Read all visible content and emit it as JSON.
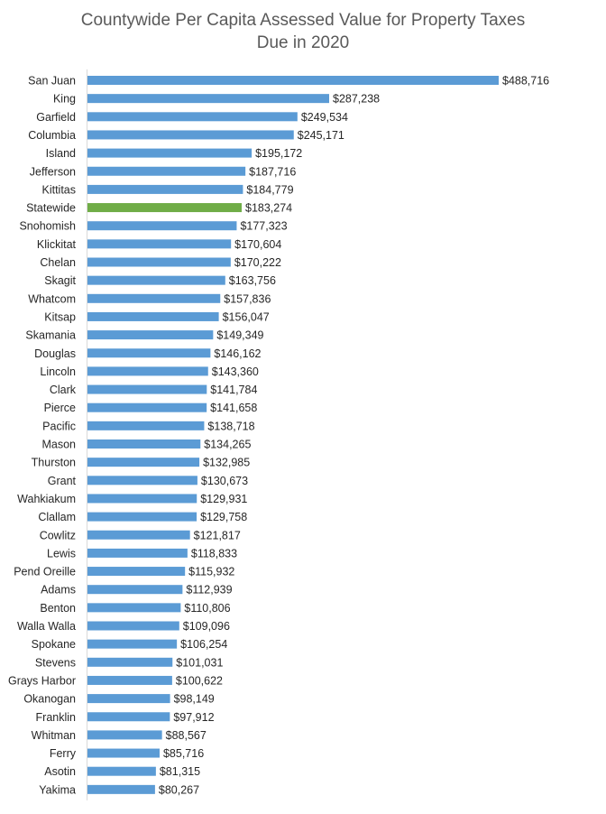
{
  "chart_data": {
    "type": "bar",
    "orientation": "horizontal",
    "title_lines": [
      "Countywide Per Capita Assessed Value for Property Taxes",
      "Due in 2020"
    ],
    "xlabel": "",
    "ylabel": "",
    "xlim": [
      0,
      500000
    ],
    "grid": false,
    "legend": "none",
    "colors": {
      "default": "#5B9BD5",
      "highlight": "#70AD47"
    },
    "highlight_category": "Statewide",
    "categories": [
      "San Juan",
      "King",
      "Garfield",
      "Columbia",
      "Island",
      "Jefferson",
      "Kittitas",
      "Statewide",
      "Snohomish",
      "Klickitat",
      "Chelan",
      "Skagit",
      "Whatcom",
      "Kitsap",
      "Skamania",
      "Douglas",
      "Lincoln",
      "Clark",
      "Pierce",
      "Pacific",
      "Mason",
      "Thurston",
      "Grant",
      "Wahkiakum",
      "Clallam",
      "Cowlitz",
      "Lewis",
      "Pend Oreille",
      "Adams",
      "Benton",
      "Walla Walla",
      "Spokane",
      "Stevens",
      "Grays Harbor",
      "Okanogan",
      "Franklin",
      "Whitman",
      "Ferry",
      "Asotin",
      "Yakima"
    ],
    "values": [
      488716,
      287238,
      249534,
      245171,
      195172,
      187716,
      184779,
      183274,
      177323,
      170604,
      170222,
      163756,
      157836,
      156047,
      149349,
      146162,
      143360,
      141784,
      141658,
      138718,
      134265,
      132985,
      130673,
      129931,
      129758,
      121817,
      118833,
      115932,
      112939,
      110806,
      109096,
      106254,
      101031,
      100622,
      98149,
      97912,
      88567,
      85716,
      81315,
      80267
    ],
    "value_labels": [
      "$488,716",
      "$287,238",
      "$249,534",
      "$245,171",
      "$195,172",
      "$187,716",
      "$184,779",
      "$183,274",
      "$177,323",
      "$170,604",
      "$170,222",
      "$163,756",
      "$157,836",
      "$156,047",
      "$149,349",
      "$146,162",
      "$143,360",
      "$141,784",
      "$141,658",
      "$138,718",
      "$134,265",
      "$132,985",
      "$130,673",
      "$129,931",
      "$129,758",
      "$121,817",
      "$118,833",
      "$115,932",
      "$112,939",
      "$110,806",
      "$109,096",
      "$106,254",
      "$101,031",
      "$100,622",
      "$98,149",
      "$97,912",
      "$88,567",
      "$85,716",
      "$81,315",
      "$80,267"
    ]
  }
}
